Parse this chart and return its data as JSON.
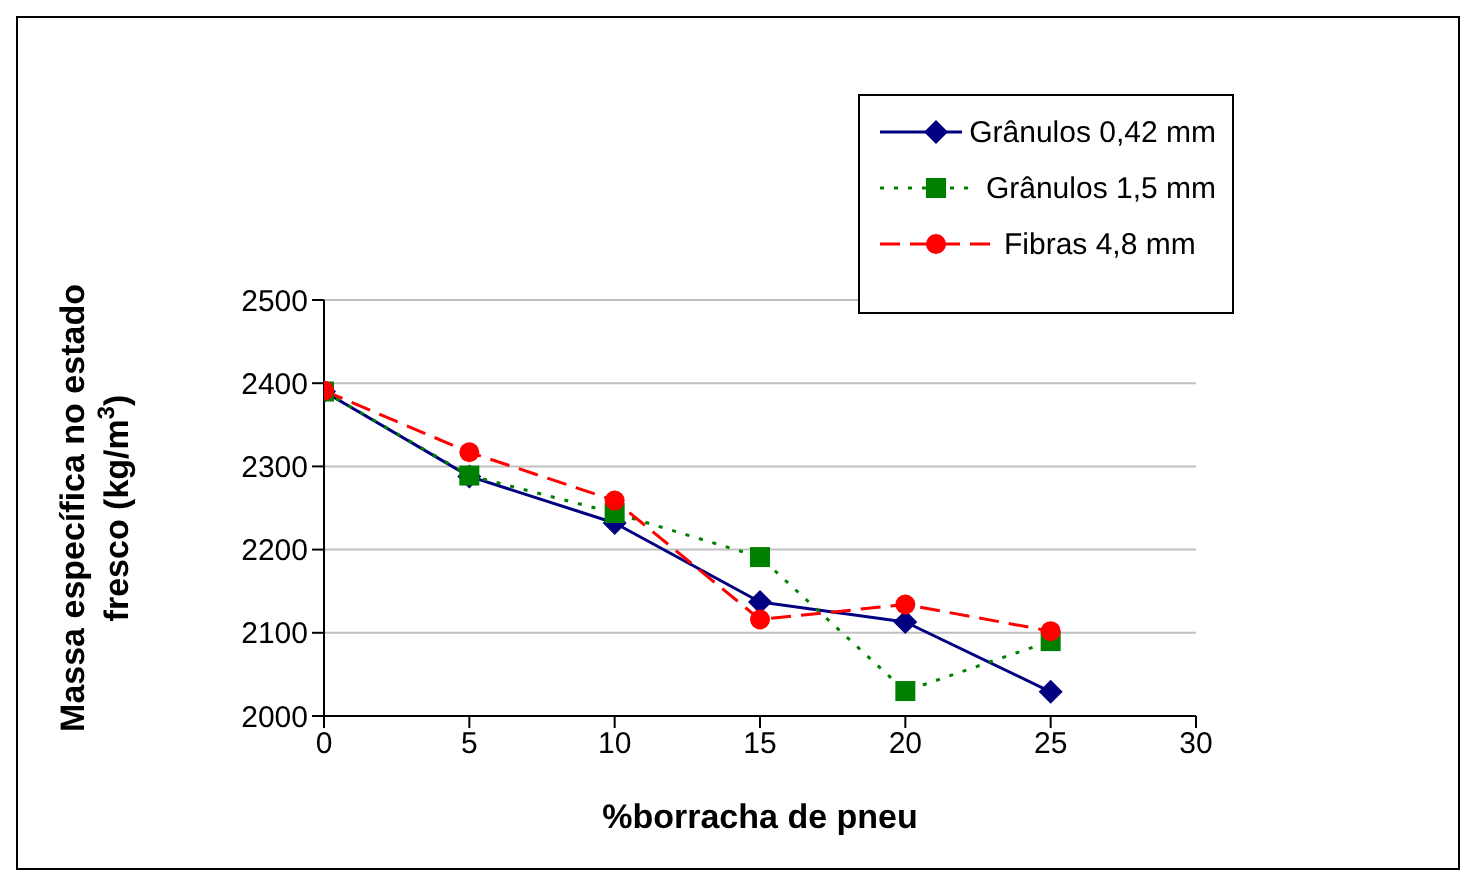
{
  "chart_data": {
    "type": "line",
    "xlabel": "%borracha de pneu",
    "ylabel": "Massa específica no estado fresco (kg/m$^{3}$)",
    "x": [
      0,
      5,
      10,
      15,
      20,
      25
    ],
    "series": [
      {
        "name": "Grânulos 0,42 mm",
        "color": "#000080",
        "marker": "diamond",
        "line_style": "solid",
        "values": [
          2390,
          2288,
          2232,
          2137,
          2113,
          2029
        ]
      },
      {
        "name": "Grânulos 1,5 mm",
        "color": "#008000",
        "marker": "square",
        "line_style": "dotted",
        "values": [
          2390,
          2289,
          2244,
          2191,
          2030,
          2090
        ]
      },
      {
        "name": "Fibras 4,8 mm",
        "color": "#ff0000",
        "marker": "circle",
        "line_style": "dashed",
        "values": [
          2391,
          2317,
          2259,
          2116,
          2134,
          2102
        ]
      }
    ],
    "xlim": [
      0,
      30
    ],
    "xticks": [
      0,
      5,
      10,
      15,
      20,
      25,
      30
    ],
    "ylim": [
      2000,
      2500
    ],
    "yticks": [
      2000,
      2100,
      2200,
      2300,
      2400,
      2500
    ],
    "grid": "y",
    "legend": "top right"
  }
}
